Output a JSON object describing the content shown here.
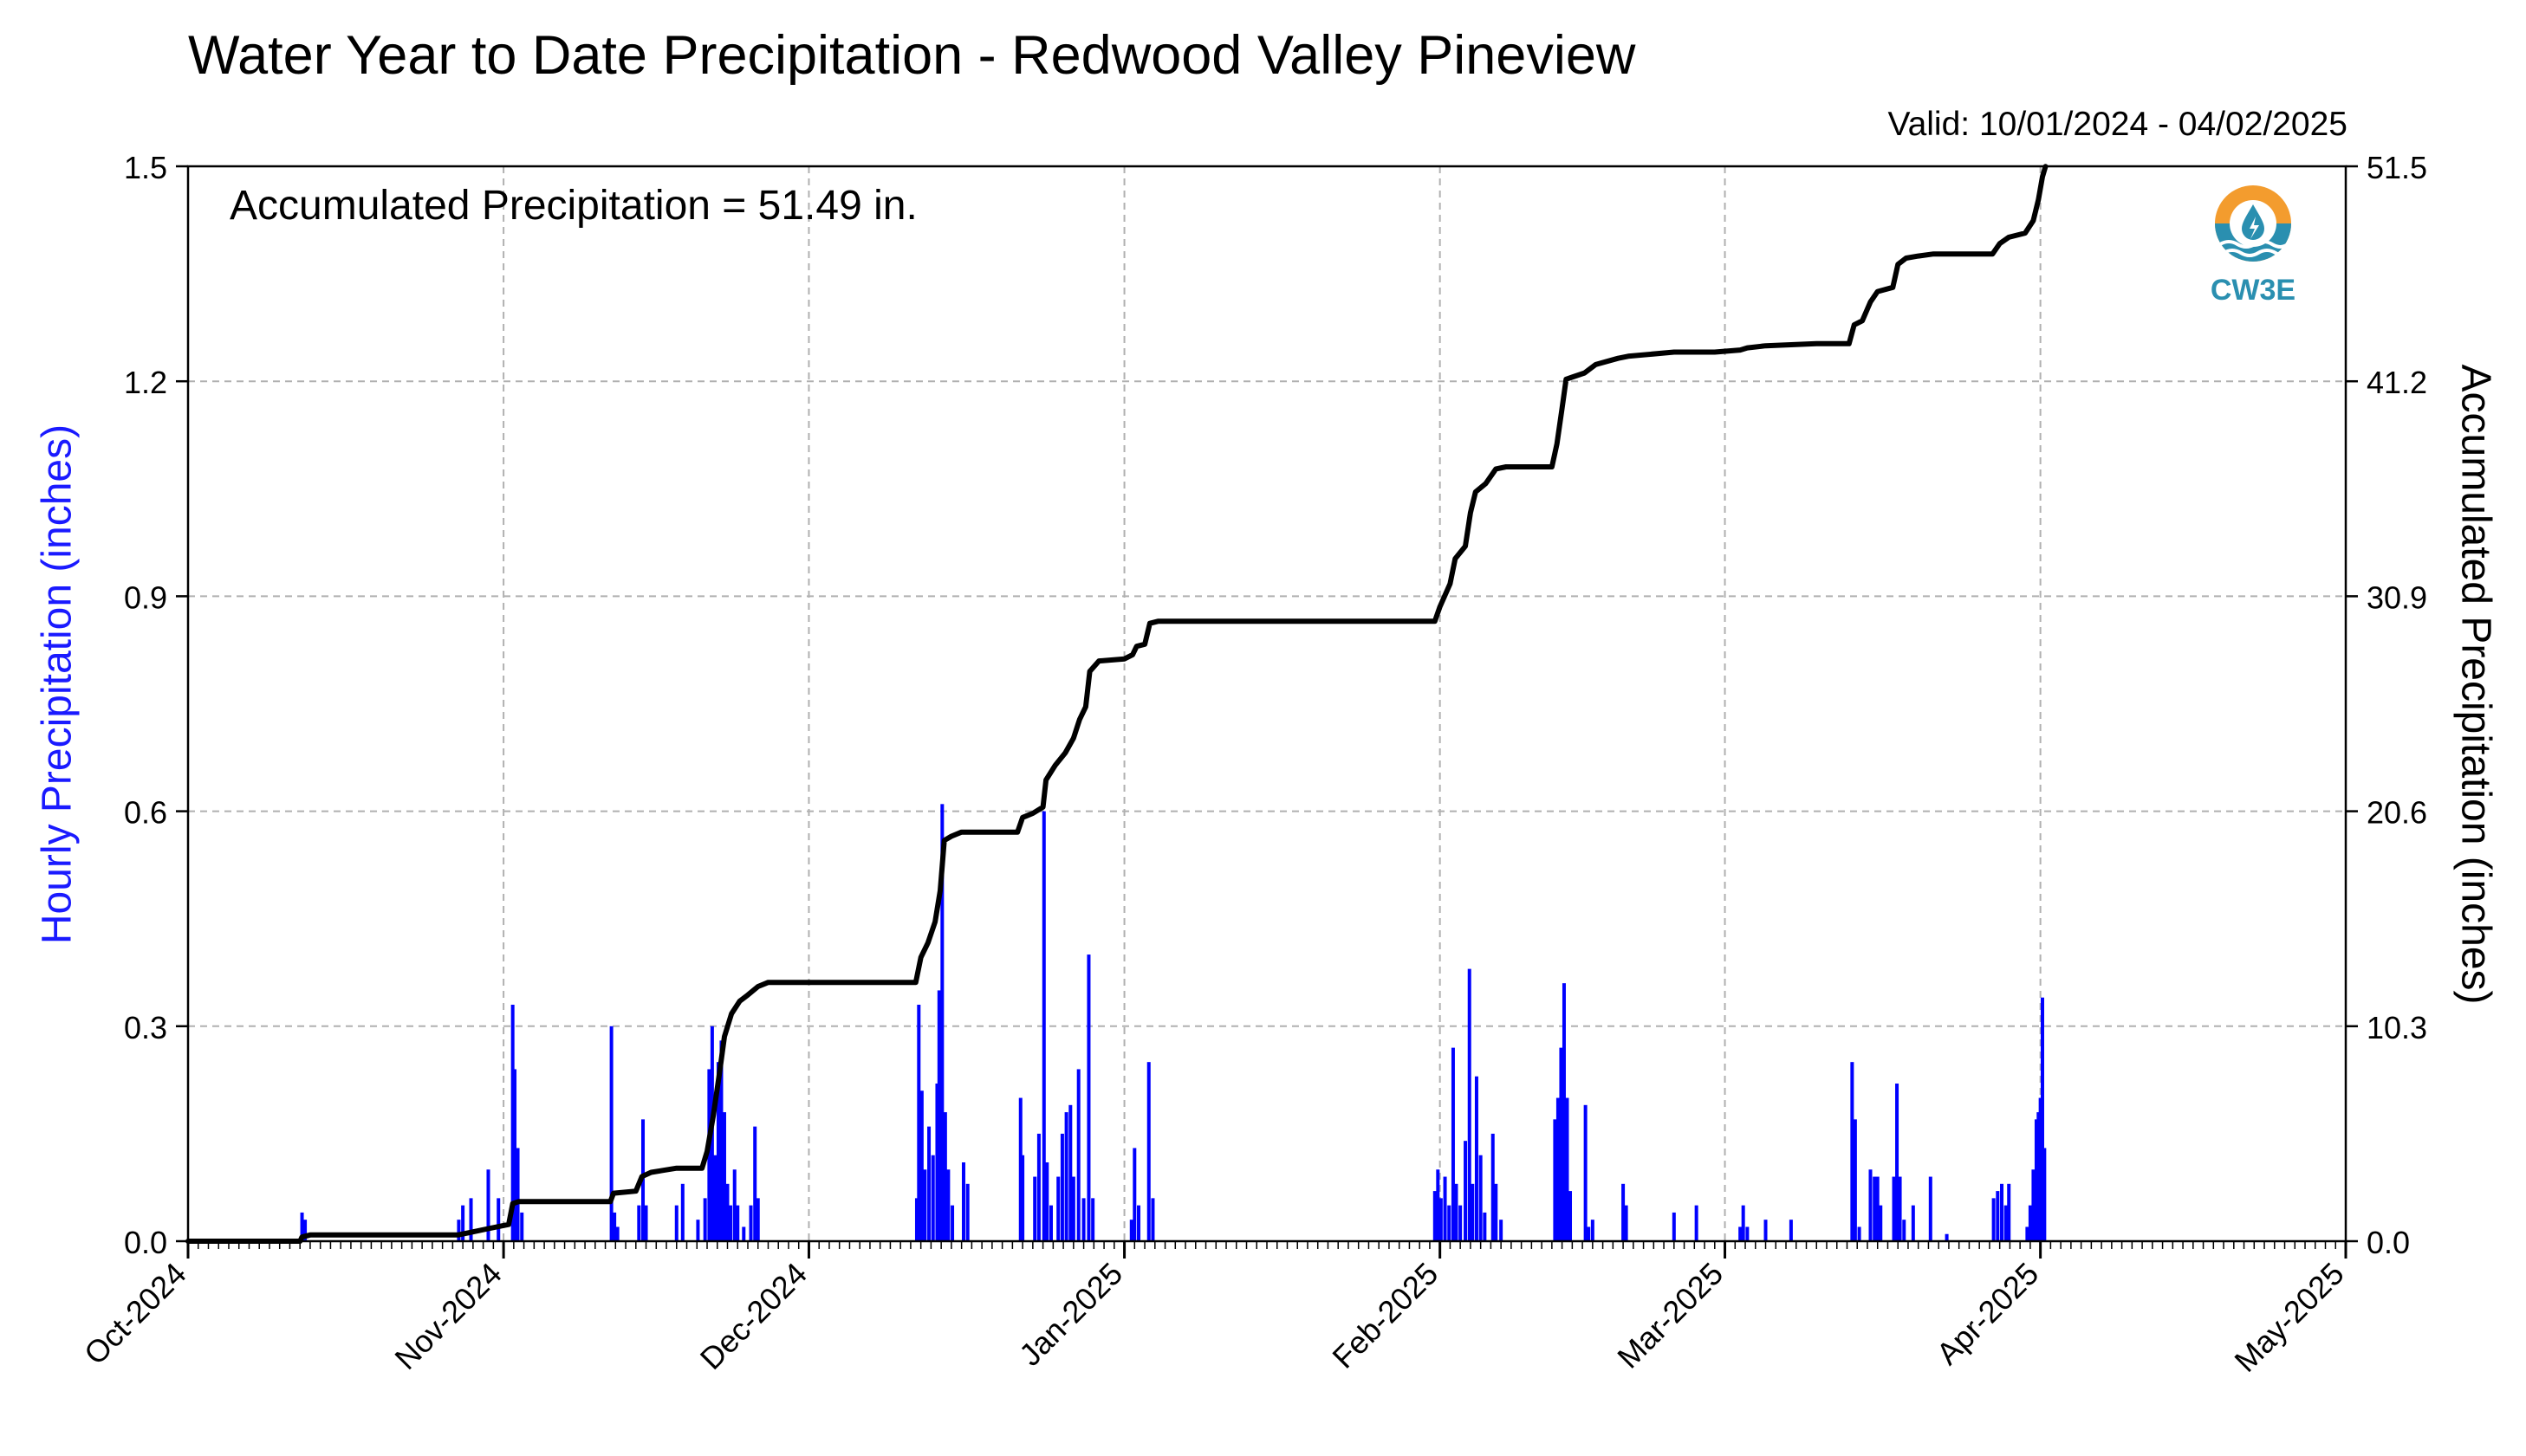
{
  "chart_data": {
    "type": "bar",
    "title": "Water Year to Date Precipitation - Redwood Valley Pineview",
    "subtitle": "Valid: 10/01/2024 - 04/02/2025",
    "annotation": "Accumulated Precipitation = 51.49 in.",
    "ylabel_left": "Hourly Precipitation (inches)",
    "ylabel_right": "Accumulated Precipitation (inches)",
    "ylim_left": [
      0,
      1.5
    ],
    "ylim_right": [
      0,
      51.5
    ],
    "yticks_left": [
      "0.0",
      "0.3",
      "0.6",
      "0.9",
      "1.2",
      "1.5"
    ],
    "yticks_right": [
      "0.0",
      "10.3",
      "20.6",
      "30.9",
      "41.2",
      "51.5"
    ],
    "x_range_days": [
      0,
      212
    ],
    "xticks": [
      {
        "label": "Oct-2024",
        "day": 0
      },
      {
        "label": "Nov-2024",
        "day": 31
      },
      {
        "label": "Dec-2024",
        "day": 61
      },
      {
        "label": "Jan-2025",
        "day": 92
      },
      {
        "label": "Feb-2025",
        "day": 123
      },
      {
        "label": "Mar-2025",
        "day": 151
      },
      {
        "label": "Apr-2025",
        "day": 182
      },
      {
        "label": "May-2025",
        "day": 212
      }
    ],
    "grid": true,
    "colors": {
      "hourly_bars": "#0000ff",
      "accumulated_line": "#000000",
      "left_axis_label": "#1a1aff"
    },
    "series": [
      {
        "name": "Hourly Precipitation",
        "kind": "bar",
        "points": [
          [
            11.2,
            0.04
          ],
          [
            11.5,
            0.03
          ],
          [
            26.6,
            0.03
          ],
          [
            27.0,
            0.05
          ],
          [
            27.8,
            0.06
          ],
          [
            29.5,
            0.1
          ],
          [
            30.5,
            0.06
          ],
          [
            31.9,
            0.33
          ],
          [
            32.1,
            0.24
          ],
          [
            32.4,
            0.13
          ],
          [
            32.8,
            0.04
          ],
          [
            41.6,
            0.3
          ],
          [
            41.9,
            0.04
          ],
          [
            42.2,
            0.02
          ],
          [
            44.3,
            0.05
          ],
          [
            44.7,
            0.17
          ],
          [
            45.0,
            0.05
          ],
          [
            48.0,
            0.05
          ],
          [
            48.6,
            0.08
          ],
          [
            50.1,
            0.03
          ],
          [
            50.8,
            0.06
          ],
          [
            51.2,
            0.24
          ],
          [
            51.5,
            0.3
          ],
          [
            51.8,
            0.12
          ],
          [
            52.1,
            0.25
          ],
          [
            52.4,
            0.28
          ],
          [
            52.7,
            0.18
          ],
          [
            53.0,
            0.08
          ],
          [
            53.3,
            0.05
          ],
          [
            53.7,
            0.1
          ],
          [
            54.0,
            0.05
          ],
          [
            54.6,
            0.02
          ],
          [
            55.3,
            0.05
          ],
          [
            55.7,
            0.16
          ],
          [
            56.0,
            0.06
          ],
          [
            71.6,
            0.06
          ],
          [
            71.8,
            0.33
          ],
          [
            72.1,
            0.21
          ],
          [
            72.4,
            0.1
          ],
          [
            72.8,
            0.16
          ],
          [
            73.2,
            0.12
          ],
          [
            73.6,
            0.22
          ],
          [
            73.8,
            0.35
          ],
          [
            74.1,
            0.61
          ],
          [
            74.4,
            0.18
          ],
          [
            74.7,
            0.1
          ],
          [
            75.1,
            0.05
          ],
          [
            76.2,
            0.11
          ],
          [
            76.6,
            0.08
          ],
          [
            81.8,
            0.2
          ],
          [
            82.0,
            0.12
          ],
          [
            83.2,
            0.09
          ],
          [
            83.6,
            0.15
          ],
          [
            84.1,
            0.6
          ],
          [
            84.4,
            0.11
          ],
          [
            84.8,
            0.05
          ],
          [
            85.5,
            0.09
          ],
          [
            85.9,
            0.15
          ],
          [
            86.3,
            0.18
          ],
          [
            86.7,
            0.19
          ],
          [
            87.0,
            0.09
          ],
          [
            87.5,
            0.24
          ],
          [
            88.0,
            0.06
          ],
          [
            88.5,
            0.4
          ],
          [
            88.9,
            0.06
          ],
          [
            92.7,
            0.03
          ],
          [
            93.0,
            0.13
          ],
          [
            93.4,
            0.05
          ],
          [
            94.4,
            0.25
          ],
          [
            94.8,
            0.06
          ],
          [
            122.5,
            0.07
          ],
          [
            122.8,
            0.1
          ],
          [
            123.1,
            0.06
          ],
          [
            123.5,
            0.09
          ],
          [
            123.9,
            0.05
          ],
          [
            124.3,
            0.27
          ],
          [
            124.6,
            0.08
          ],
          [
            125.0,
            0.05
          ],
          [
            125.5,
            0.14
          ],
          [
            125.9,
            0.38
          ],
          [
            126.2,
            0.08
          ],
          [
            126.6,
            0.23
          ],
          [
            127.0,
            0.12
          ],
          [
            127.4,
            0.04
          ],
          [
            128.2,
            0.15
          ],
          [
            128.5,
            0.08
          ],
          [
            129.0,
            0.03
          ],
          [
            134.3,
            0.17
          ],
          [
            134.6,
            0.2
          ],
          [
            134.9,
            0.27
          ],
          [
            135.2,
            0.36
          ],
          [
            135.5,
            0.2
          ],
          [
            135.8,
            0.07
          ],
          [
            137.3,
            0.19
          ],
          [
            137.6,
            0.02
          ],
          [
            138.0,
            0.03
          ],
          [
            141.0,
            0.08
          ],
          [
            141.3,
            0.05
          ],
          [
            146.0,
            0.04
          ],
          [
            148.2,
            0.05
          ],
          [
            152.5,
            0.02
          ],
          [
            152.8,
            0.05
          ],
          [
            153.2,
            0.02
          ],
          [
            155.0,
            0.03
          ],
          [
            157.5,
            0.03
          ],
          [
            163.5,
            0.25
          ],
          [
            163.8,
            0.17
          ],
          [
            164.2,
            0.02
          ],
          [
            165.3,
            0.1
          ],
          [
            165.7,
            0.09
          ],
          [
            166.0,
            0.09
          ],
          [
            166.3,
            0.05
          ],
          [
            167.6,
            0.09
          ],
          [
            167.9,
            0.22
          ],
          [
            168.2,
            0.09
          ],
          [
            168.6,
            0.03
          ],
          [
            169.5,
            0.05
          ],
          [
            171.2,
            0.09
          ],
          [
            172.8,
            0.01
          ],
          [
            177.4,
            0.06
          ],
          [
            177.8,
            0.07
          ],
          [
            178.2,
            0.08
          ],
          [
            178.6,
            0.05
          ],
          [
            178.9,
            0.08
          ],
          [
            180.7,
            0.02
          ],
          [
            181.0,
            0.05
          ],
          [
            181.3,
            0.1
          ],
          [
            181.6,
            0.17
          ],
          [
            181.8,
            0.18
          ],
          [
            182.0,
            0.2
          ],
          [
            182.2,
            0.34
          ],
          [
            182.4,
            0.13
          ]
        ]
      },
      {
        "name": "Accumulated Precipitation",
        "kind": "line",
        "points": [
          [
            0,
            0.0
          ],
          [
            11.0,
            0.0
          ],
          [
            11.2,
            0.2
          ],
          [
            12,
            0.3
          ],
          [
            26.5,
            0.3
          ],
          [
            27.5,
            0.4
          ],
          [
            29.5,
            0.6
          ],
          [
            31.5,
            0.8
          ],
          [
            31.9,
            1.8
          ],
          [
            32.5,
            1.9
          ],
          [
            41.5,
            1.9
          ],
          [
            41.8,
            2.3
          ],
          [
            44.0,
            2.4
          ],
          [
            44.6,
            3.1
          ],
          [
            45.5,
            3.3
          ],
          [
            48.0,
            3.5
          ],
          [
            50.5,
            3.5
          ],
          [
            51.0,
            4.3
          ],
          [
            51.6,
            6.0
          ],
          [
            52.2,
            8.0
          ],
          [
            52.7,
            9.8
          ],
          [
            53.4,
            10.9
          ],
          [
            54.2,
            11.5
          ],
          [
            55.0,
            11.8
          ],
          [
            56.0,
            12.2
          ],
          [
            57.0,
            12.4
          ],
          [
            60,
            12.4
          ],
          [
            64,
            12.4
          ],
          [
            71.5,
            12.4
          ],
          [
            72.0,
            13.6
          ],
          [
            72.7,
            14.3
          ],
          [
            73.4,
            15.3
          ],
          [
            73.9,
            16.8
          ],
          [
            74.3,
            19.2
          ],
          [
            75.0,
            19.4
          ],
          [
            76.0,
            19.6
          ],
          [
            80,
            19.6
          ],
          [
            81.5,
            19.6
          ],
          [
            82.0,
            20.3
          ],
          [
            83.0,
            20.5
          ],
          [
            84.0,
            20.8
          ],
          [
            84.3,
            22.1
          ],
          [
            85.2,
            22.8
          ],
          [
            86.2,
            23.4
          ],
          [
            87.0,
            24.1
          ],
          [
            87.6,
            25.0
          ],
          [
            88.2,
            25.6
          ],
          [
            88.6,
            27.3
          ],
          [
            89.5,
            27.8
          ],
          [
            92.0,
            27.9
          ],
          [
            92.8,
            28.1
          ],
          [
            93.2,
            28.5
          ],
          [
            94.0,
            28.6
          ],
          [
            94.5,
            29.6
          ],
          [
            95.3,
            29.7
          ],
          [
            110,
            29.7
          ],
          [
            122.5,
            29.7
          ],
          [
            123.0,
            30.4
          ],
          [
            124.0,
            31.5
          ],
          [
            124.5,
            32.7
          ],
          [
            125.5,
            33.3
          ],
          [
            126.0,
            34.9
          ],
          [
            126.5,
            35.9
          ],
          [
            127.5,
            36.3
          ],
          [
            128.5,
            37.0
          ],
          [
            129.5,
            37.1
          ],
          [
            134.0,
            37.1
          ],
          [
            134.5,
            38.2
          ],
          [
            135.0,
            39.9
          ],
          [
            135.4,
            41.3
          ],
          [
            136.0,
            41.4
          ],
          [
            137.2,
            41.6
          ],
          [
            138.3,
            42.0
          ],
          [
            140.5,
            42.3
          ],
          [
            141.5,
            42.4
          ],
          [
            146.0,
            42.6
          ],
          [
            150.0,
            42.6
          ],
          [
            152.5,
            42.7
          ],
          [
            153.2,
            42.8
          ],
          [
            155.0,
            42.9
          ],
          [
            160,
            43.0
          ],
          [
            163.2,
            43.0
          ],
          [
            163.7,
            43.9
          ],
          [
            164.5,
            44.1
          ],
          [
            165.3,
            45.0
          ],
          [
            166.0,
            45.5
          ],
          [
            167.5,
            45.7
          ],
          [
            168.0,
            46.8
          ],
          [
            168.8,
            47.1
          ],
          [
            170,
            47.2
          ],
          [
            171.5,
            47.3
          ],
          [
            176,
            47.3
          ],
          [
            177.3,
            47.3
          ],
          [
            178.0,
            47.8
          ],
          [
            178.9,
            48.1
          ],
          [
            180.5,
            48.3
          ],
          [
            181.3,
            48.9
          ],
          [
            181.8,
            49.9
          ],
          [
            182.2,
            51.0
          ],
          [
            182.5,
            51.49
          ]
        ]
      }
    ]
  },
  "logo": {
    "text": "CW3E"
  }
}
